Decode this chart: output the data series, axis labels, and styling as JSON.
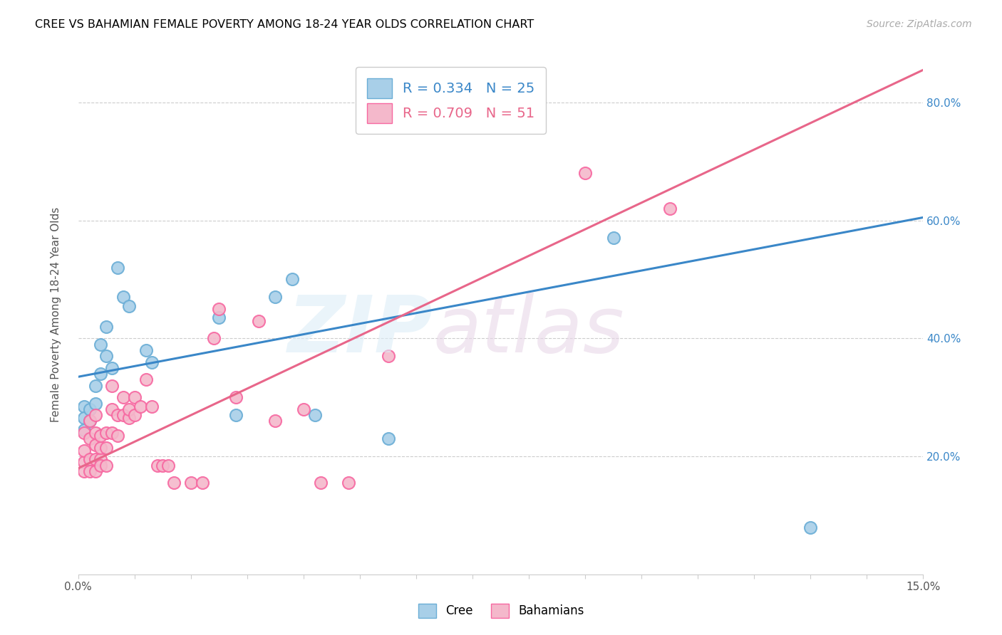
{
  "title": "CREE VS BAHAMIAN FEMALE POVERTY AMONG 18-24 YEAR OLDS CORRELATION CHART",
  "source": "Source: ZipAtlas.com",
  "ylabel": "Female Poverty Among 18-24 Year Olds",
  "xlim": [
    0.0,
    0.15
  ],
  "ylim": [
    0.0,
    0.88
  ],
  "ytick_positions": [
    0.2,
    0.4,
    0.6,
    0.8
  ],
  "ytick_labels": [
    "20.0%",
    "40.0%",
    "60.0%",
    "80.0%"
  ],
  "cree_color": "#a8cfe8",
  "bahamian_color": "#f4b8cb",
  "cree_edge_color": "#6baed6",
  "bahamian_edge_color": "#f768a1",
  "cree_line_color": "#3a87c8",
  "bahamian_line_color": "#e8668a",
  "legend_R_cree": "R = 0.334",
  "legend_N_cree": "N = 25",
  "legend_R_bahamian": "R = 0.709",
  "legend_N_bahamian": "N = 51",
  "cree_x": [
    0.001,
    0.001,
    0.001,
    0.002,
    0.002,
    0.003,
    0.003,
    0.004,
    0.004,
    0.005,
    0.005,
    0.006,
    0.007,
    0.008,
    0.009,
    0.012,
    0.013,
    0.025,
    0.028,
    0.035,
    0.038,
    0.042,
    0.055,
    0.095,
    0.13
  ],
  "cree_y": [
    0.285,
    0.265,
    0.245,
    0.28,
    0.26,
    0.32,
    0.29,
    0.39,
    0.34,
    0.42,
    0.37,
    0.35,
    0.52,
    0.47,
    0.455,
    0.38,
    0.36,
    0.435,
    0.27,
    0.47,
    0.5,
    0.27,
    0.23,
    0.57,
    0.08
  ],
  "bahamian_x": [
    0.001,
    0.001,
    0.001,
    0.001,
    0.002,
    0.002,
    0.002,
    0.002,
    0.003,
    0.003,
    0.003,
    0.003,
    0.003,
    0.004,
    0.004,
    0.004,
    0.004,
    0.005,
    0.005,
    0.005,
    0.006,
    0.006,
    0.006,
    0.007,
    0.007,
    0.008,
    0.008,
    0.009,
    0.009,
    0.01,
    0.01,
    0.011,
    0.012,
    0.013,
    0.014,
    0.015,
    0.016,
    0.017,
    0.02,
    0.022,
    0.024,
    0.025,
    0.028,
    0.032,
    0.035,
    0.04,
    0.043,
    0.048,
    0.055,
    0.09,
    0.105
  ],
  "bahamian_y": [
    0.19,
    0.21,
    0.24,
    0.175,
    0.23,
    0.26,
    0.195,
    0.175,
    0.27,
    0.24,
    0.22,
    0.175,
    0.195,
    0.195,
    0.215,
    0.235,
    0.185,
    0.24,
    0.215,
    0.185,
    0.24,
    0.28,
    0.32,
    0.235,
    0.27,
    0.27,
    0.3,
    0.265,
    0.28,
    0.27,
    0.3,
    0.285,
    0.33,
    0.285,
    0.185,
    0.185,
    0.185,
    0.155,
    0.155,
    0.155,
    0.4,
    0.45,
    0.3,
    0.43,
    0.26,
    0.28,
    0.155,
    0.155,
    0.37,
    0.68,
    0.62
  ],
  "cree_line_x": [
    0.0,
    0.15
  ],
  "cree_line_y": [
    0.335,
    0.605
  ],
  "bahamian_line_x": [
    0.0,
    0.15
  ],
  "bahamian_line_y": [
    0.18,
    0.855
  ]
}
